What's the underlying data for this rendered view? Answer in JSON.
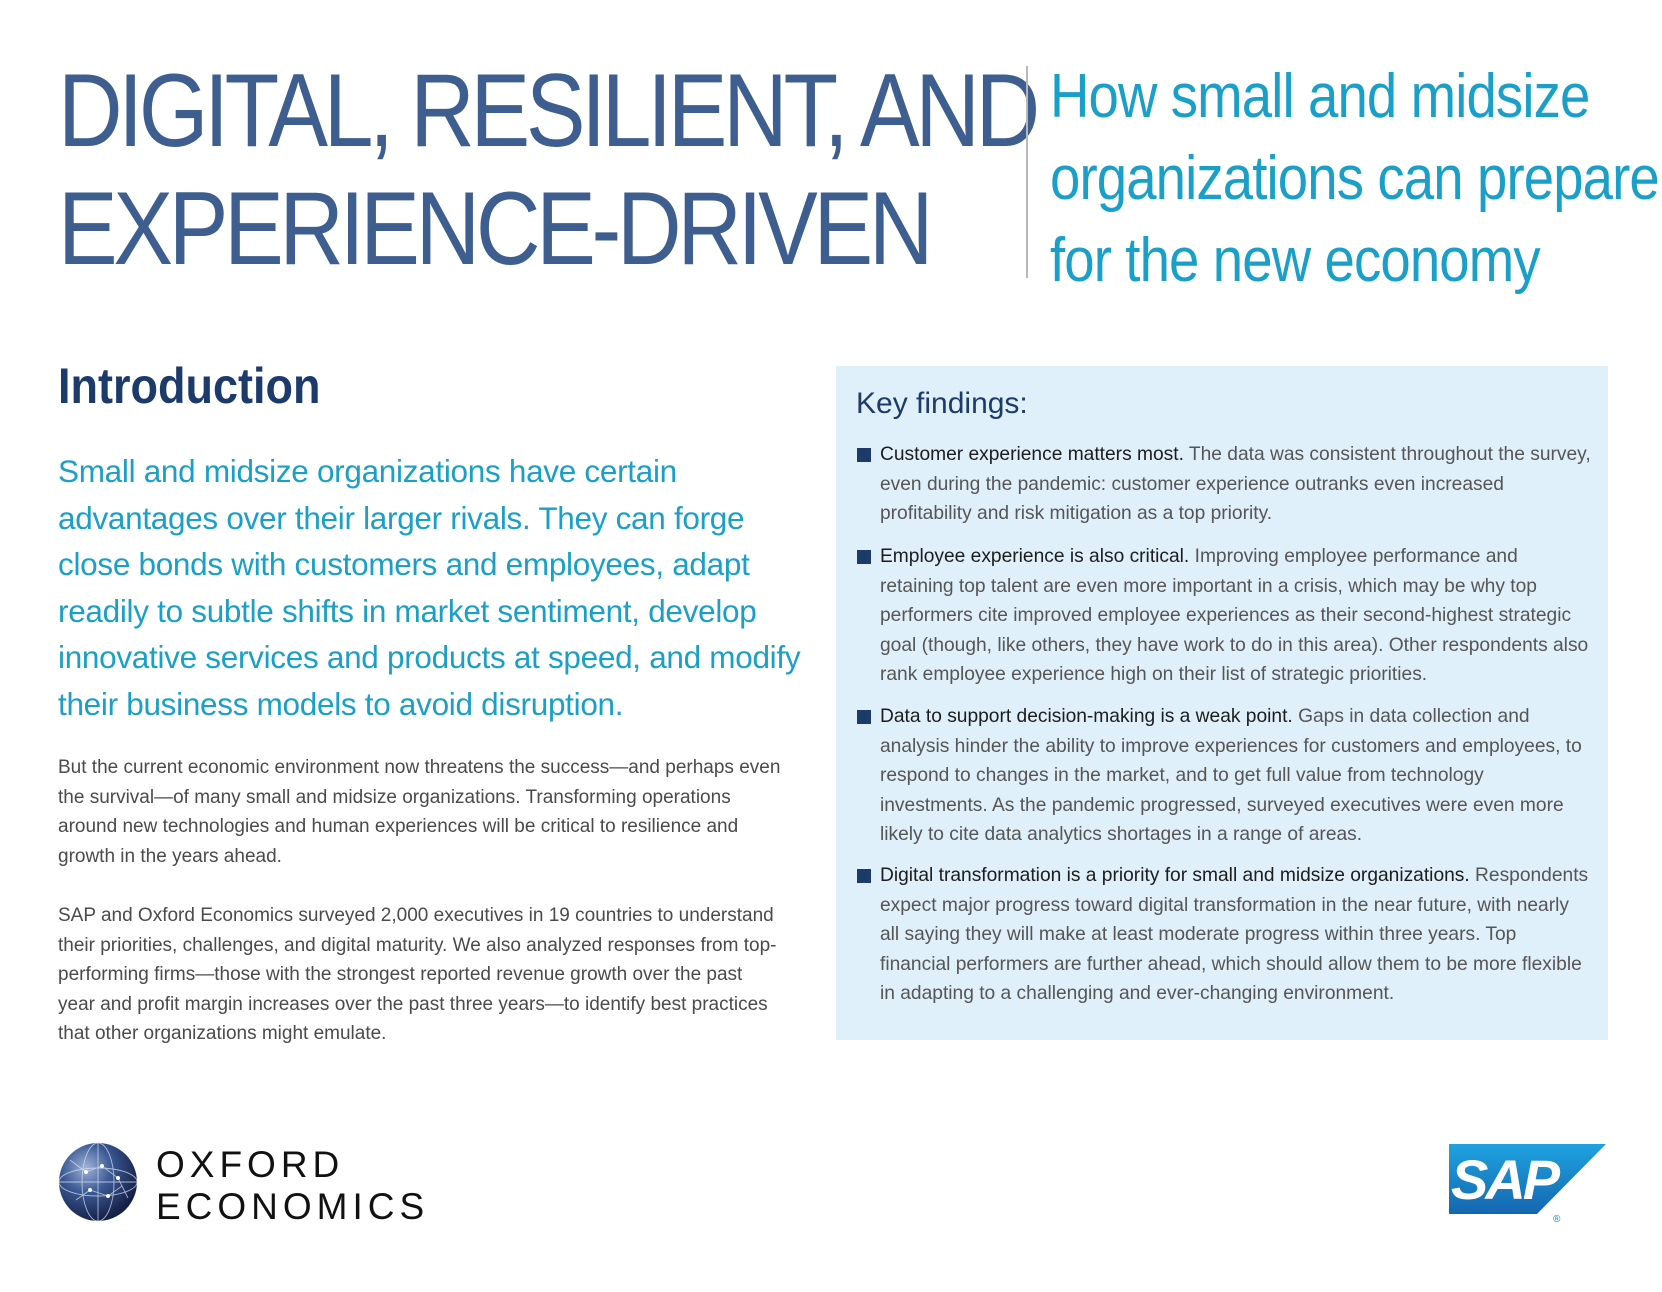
{
  "header": {
    "title_lines": [
      "DIGITAL, RESILIENT, AND",
      "EXPERIENCE-DRIVEN"
    ],
    "subtitle_lines": [
      "How small and midsize",
      "organizations can prepare",
      "for the new economy"
    ]
  },
  "introduction": {
    "heading": "Introduction",
    "lead": "Small and midsize organizations have certain advantages over their larger rivals. They can forge close bonds with customers and employees, adapt readily to subtle shifts in market sentiment, develop innovative services and products at speed, and modify their business models to avoid disruption.",
    "paragraphs": [
      "But the current economic environment now threatens the success—and perhaps even the survival—of many small and midsize organizations. Transforming operations around new technologies and human experiences will be critical to resilience and growth in the years ahead.",
      "SAP and Oxford Economics surveyed 2,000 executives in 19 countries to understand their priorities, challenges, and digital maturity. We also analyzed responses from top-performing firms—those with the strongest reported revenue growth over the past year and profit margin increases over the past three years—to identify best practices that other organizations might emulate."
    ]
  },
  "key_findings": {
    "title": "Key findings:",
    "items": [
      {
        "lead": "Customer experience matters most.",
        "text": " The data was consistent throughout the survey, even during the pandemic: customer experience outranks even increased profitability and risk mitigation as a top priority."
      },
      {
        "lead": "Employee experience is also critical.",
        "text": " Improving employee performance and retaining top talent are even more important in a crisis, which may be why top performers cite improved employee experiences as their second-highest strategic goal (though, like others, they have work to do in this area). Other respondents also rank employee experience high on their list of strategic priorities."
      },
      {
        "lead": "Data to support decision-making is a weak point.",
        "text": " Gaps in data collection and analysis hinder the ability to improve experiences for customers and employees, to respond to changes in the market, and to get full value from technology investments. As the pandemic progressed, surveyed executives were even more likely to cite data analytics shortages in a range of areas."
      },
      {
        "lead": "Digital transformation is a priority for small and midsize organizations.",
        "text": " Respondents expect major progress toward digital transformation in the near future, with nearly all saying they will make at least moderate progress within three years. Top financial performers are further ahead, which should allow them to be more flexible in adapting to a challenging and ever-changing environment."
      }
    ]
  },
  "footer": {
    "oxford_logo_lines": [
      "OXFORD",
      "ECONOMICS"
    ],
    "sap_logo_text": "SAP",
    "sap_registered_mark": "®"
  },
  "colors": {
    "title_blue": "#3d5e8f",
    "accent_cyan": "#1aa0c8",
    "heading_navy": "#1c3b6b",
    "findings_background": "#e0f0fa",
    "body_gray": "#4a4a4a",
    "sap_blue": "#1a86c8"
  }
}
